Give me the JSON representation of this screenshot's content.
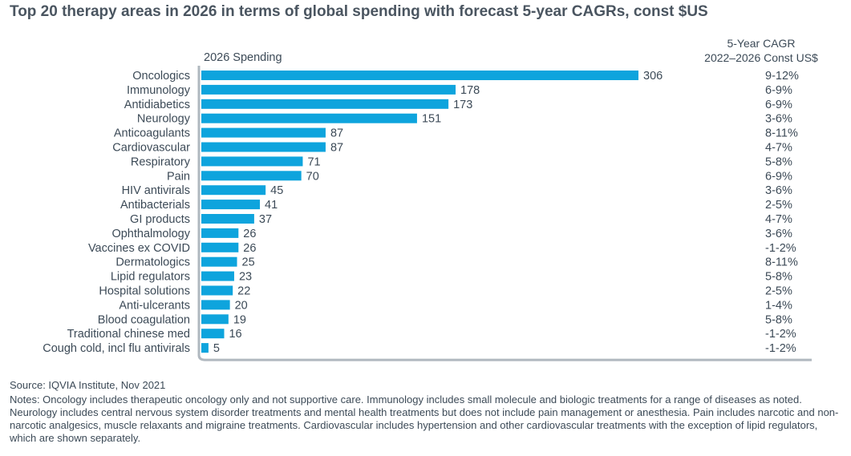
{
  "chart_data": {
    "type": "bar",
    "orientation": "horizontal",
    "title": "Top 20 therapy areas in 2026 in terms of global spending with forecast 5-year CAGRs, const $US",
    "xlabel": "2026 Spending",
    "cagr_header": [
      "5-Year CAGR",
      "2022–2026 Const US$"
    ],
    "categories": [
      "Oncologics",
      "Immunology",
      "Antidiabetics",
      "Neurology",
      "Anticoagulants",
      "Cardiovascular",
      "Respiratory",
      "Pain",
      "HIV antivirals",
      "Antibacterials",
      "GI products",
      "Ophthalmology",
      "Vaccines ex COVID",
      "Dermatologics",
      "Lipid regulators",
      "Hospital solutions",
      "Anti-ulcerants",
      "Blood coagulation",
      "Traditional chinese med",
      "Cough cold, incl flu antivirals"
    ],
    "values": [
      306,
      178,
      173,
      151,
      87,
      87,
      71,
      70,
      45,
      41,
      37,
      26,
      26,
      25,
      23,
      22,
      20,
      19,
      16,
      5
    ],
    "cagr": [
      "9-12%",
      "6-9%",
      "6-9%",
      "3-6%",
      "8-11%",
      "4-7%",
      "5-8%",
      "6-9%",
      "3-6%",
      "2-5%",
      "4-7%",
      "3-6%",
      "-1-2%",
      "8-11%",
      "5-8%",
      "2-5%",
      "1-4%",
      "5-8%",
      "-1-2%",
      "-1-2%"
    ],
    "xlim": [
      0,
      306
    ],
    "bar_color": "#0ea4dd",
    "axis_color": "#b0b8bf"
  },
  "footer": {
    "source": "Source: IQVIA Institute, Nov 2021",
    "notes": "Notes: Oncology includes therapeutic oncology only and not supportive care. Immunology includes small molecule and biologic treatments for a range of diseases as noted. Neurology includes central nervous system disorder treatments and mental health treatments but does not include pain management or anesthesia. Pain includes narcotic and non-narcotic analgesics, muscle relaxants and migraine treatments. Cardiovascular includes hypertension and other cardiovascular treatments with the exception of lipid regulators, which are shown separately."
  }
}
